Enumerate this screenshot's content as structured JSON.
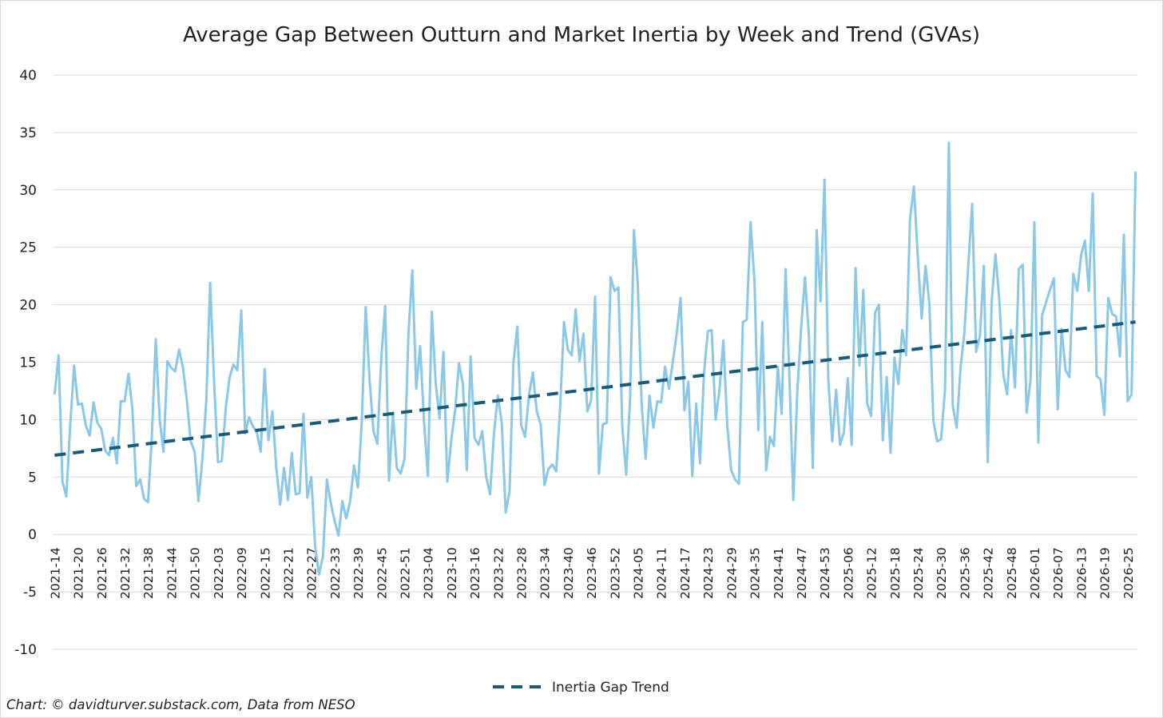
{
  "chart_data": {
    "type": "line",
    "title": "Average Gap Between Outturn and Market Inertia by Week and Trend (GVAs)",
    "xlabel": "",
    "ylabel": "",
    "ylim": [
      -10,
      40
    ],
    "y_ticks": [
      40,
      35,
      30,
      25,
      20,
      15,
      10,
      5,
      0,
      -5,
      -10
    ],
    "x_range": [
      "2021-14",
      "2026-27"
    ],
    "x_tick_labels": [
      "2021-14",
      "2021-20",
      "2021-26",
      "2021-32",
      "2021-38",
      "2021-44",
      "2021-50",
      "2022-03",
      "2022-09",
      "2022-15",
      "2022-21",
      "2022-27",
      "2022-33",
      "2022-39",
      "2022-45",
      "2022-51",
      "2023-04",
      "2023-10",
      "2023-16",
      "2023-22",
      "2023-28",
      "2023-34",
      "2023-40",
      "2023-46",
      "2023-52",
      "2024-05",
      "2024-11",
      "2024-17",
      "2024-23",
      "2024-29",
      "2024-35",
      "2024-41",
      "2024-47",
      "2024-53",
      "2025-06",
      "2025-12",
      "2025-18",
      "2025-24",
      "2025-30",
      "2025-36",
      "2025-42",
      "2025-48",
      "2026-01",
      "2026-07",
      "2026-13",
      "2026-19",
      "2026-25"
    ],
    "grid": true,
    "legend_position": "bottom",
    "series": [
      {
        "name": "",
        "style": "solid",
        "color": "#89c8e8",
        "values": [
          12.2,
          15.6,
          4.6,
          3.3,
          9.5,
          14.7,
          11.3,
          11.4,
          9.5,
          8.6,
          11.5,
          9.7,
          9.2,
          7.3,
          6.9,
          8.4,
          6.2,
          11.6,
          11.6,
          14.0,
          10.9,
          4.2,
          4.8,
          3.1,
          2.8,
          8.5,
          17.0,
          10.0,
          7.2,
          15.1,
          14.5,
          14.2,
          16.1,
          14.5,
          11.7,
          8.1,
          7.2,
          2.9,
          6.6,
          11.7,
          21.9,
          13.3,
          6.3,
          6.4,
          11.0,
          13.7,
          14.8,
          14.3,
          19.5,
          8.8,
          10.2,
          9.4,
          8.9,
          7.2,
          14.4,
          8.2,
          10.7,
          5.8,
          2.6,
          5.8,
          3.0,
          7.1,
          3.5,
          3.6,
          10.5,
          3.2,
          5.0,
          -1.0,
          -3.5,
          -1.9,
          4.8,
          2.8,
          1.2,
          -0.1,
          2.9,
          1.4,
          2.9,
          6.0,
          4.1,
          9.9,
          19.8,
          13.4,
          9.0,
          7.9,
          15.3,
          19.9,
          4.7,
          10.6,
          5.8,
          5.3,
          6.6,
          17.5,
          23.0,
          12.7,
          16.4,
          9.9,
          5.1,
          19.4,
          13.2,
          10.1,
          15.9,
          4.6,
          8.2,
          10.8,
          14.9,
          13.1,
          5.6,
          15.5,
          8.4,
          7.8,
          9.0,
          5.0,
          3.5,
          8.8,
          12.1,
          9.7,
          1.9,
          3.7,
          15.0,
          18.1,
          9.5,
          8.5,
          12.2,
          14.1,
          10.7,
          9.6,
          4.3,
          5.7,
          6.1,
          5.5,
          11.0,
          18.5,
          16.1,
          15.6,
          19.6,
          15.1,
          17.5,
          10.7,
          11.7,
          20.7,
          5.3,
          9.6,
          9.7,
          22.4,
          21.2,
          21.5,
          9.4,
          5.2,
          11.8,
          26.5,
          21.8,
          11.2,
          6.6,
          12.1,
          9.3,
          11.6,
          11.5,
          14.6,
          12.7,
          15.0,
          17.5,
          20.6,
          10.8,
          13.3,
          5.1,
          11.4,
          6.2,
          14.0,
          17.7,
          17.8,
          10.0,
          12.6,
          16.9,
          9.5,
          5.6,
          4.8,
          4.4,
          18.5,
          18.7,
          27.2,
          22.0,
          9.1,
          18.5,
          5.6,
          8.5,
          7.7,
          14.6,
          10.5,
          23.1,
          13.5,
          3.0,
          12.3,
          18.0,
          22.4,
          17.3,
          5.8,
          26.5,
          20.3,
          30.9,
          13.5,
          8.1,
          12.6,
          7.8,
          8.9,
          13.6,
          7.8,
          23.2,
          14.7,
          21.3,
          11.4,
          10.3,
          19.3,
          20.0,
          8.2,
          13.7,
          7.1,
          15.4,
          13.1,
          17.8,
          15.6,
          27.5,
          30.3,
          24.2,
          18.8,
          23.4,
          20.0,
          9.9,
          8.1,
          8.3,
          12.6,
          34.1,
          11.2,
          9.3,
          14.5,
          17.6,
          23.5,
          28.8,
          15.9,
          17.3,
          23.4,
          6.3,
          20.3,
          24.4,
          20.3,
          13.9,
          12.2,
          17.8,
          12.8,
          23.1,
          23.5,
          10.6,
          13.4,
          27.2,
          8.0,
          19.1,
          20.2,
          21.3,
          22.3,
          10.9,
          17.9,
          14.3,
          13.7,
          22.7,
          21.2,
          24.3,
          25.6,
          21.2,
          29.7,
          13.8,
          13.5,
          10.4,
          20.6,
          19.2,
          19.0,
          15.5,
          26.1,
          11.6,
          12.2,
          31.6
        ]
      },
      {
        "name": "Inertia Gap Trend",
        "style": "dashed",
        "color": "#175a7a",
        "values": [
          6.9,
          18.5
        ]
      }
    ]
  },
  "credit": "Chart: © davidturver.substack.com, Data from NESO"
}
